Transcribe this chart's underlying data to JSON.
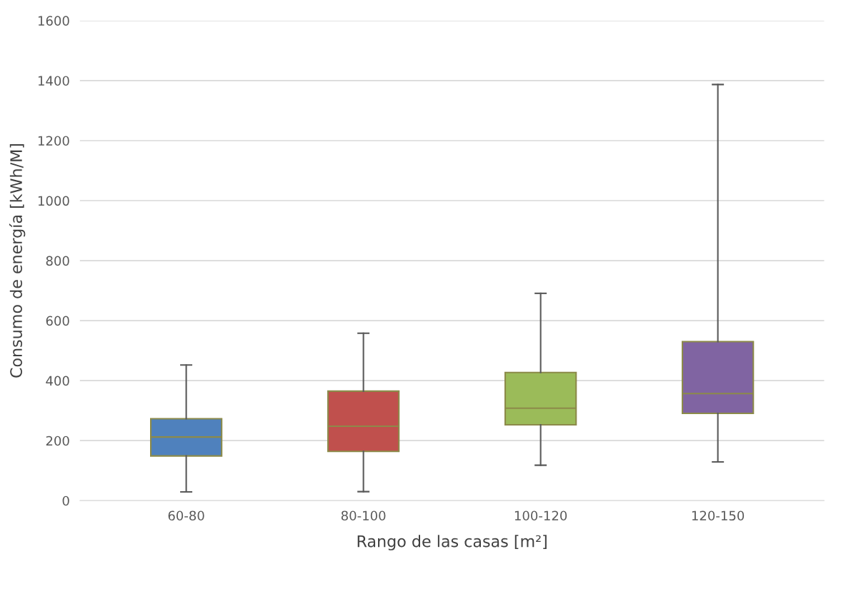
{
  "chart_data": {
    "type": "box",
    "xlabel": "Rango de las casas [m²]",
    "ylabel": "Consumo de energía [kWh/M]",
    "categories": [
      "60-80",
      "80-100",
      "100-120",
      "120-150"
    ],
    "colors": [
      "#4f81bd",
      "#c0504d",
      "#9bbb59",
      "#8064a2"
    ],
    "boxes": [
      {
        "low": 29,
        "q1": 149,
        "median": 212,
        "q3": 273,
        "high": 452
      },
      {
        "low": 30,
        "q1": 164,
        "median": 248,
        "q3": 365,
        "high": 558
      },
      {
        "low": 118,
        "q1": 253,
        "median": 308,
        "q3": 427,
        "high": 691
      },
      {
        "low": 129,
        "q1": 291,
        "median": 357,
        "q3": 530,
        "high": 1387
      }
    ],
    "ylim": [
      0,
      1600
    ],
    "yticks": [
      0,
      200,
      400,
      600,
      800,
      1000,
      1200,
      1400,
      1600
    ],
    "grid": "y"
  }
}
